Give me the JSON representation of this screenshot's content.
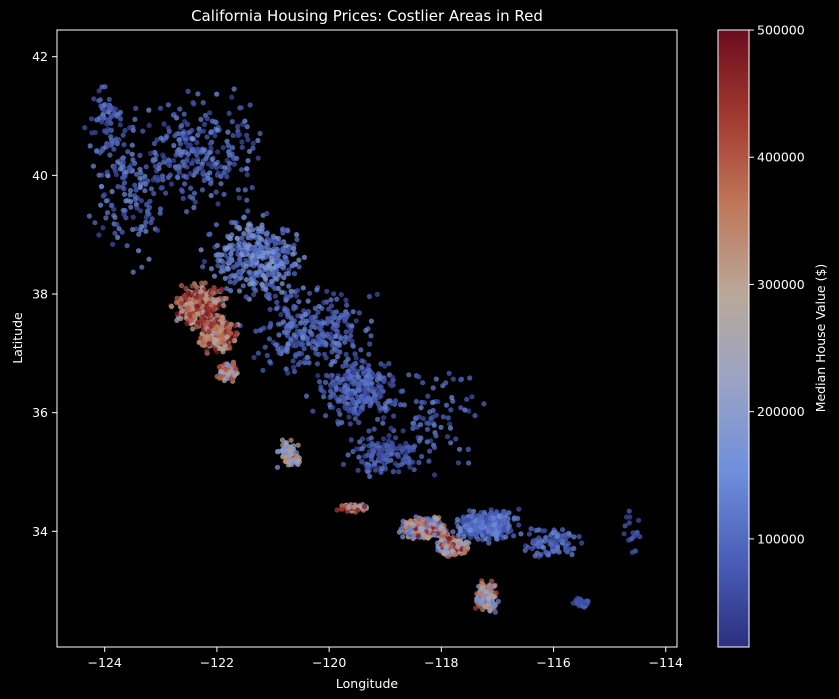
{
  "chart_data": {
    "type": "scatter",
    "title": "California Housing Prices: Costlier Areas in Red",
    "xlabel": "Longitude",
    "ylabel": "Latitude",
    "xlim": [
      -124.85,
      -113.8
    ],
    "ylim": [
      32.05,
      42.45
    ],
    "xticks": [
      -124,
      -122,
      -120,
      -118,
      -116,
      -114
    ],
    "yticks": [
      34,
      36,
      38,
      40,
      42
    ],
    "grid": false,
    "colorbar": {
      "label": "Median House Value ($)",
      "range": [
        15000,
        500000
      ],
      "ticks": [
        100000,
        200000,
        300000,
        400000,
        500000
      ],
      "colormap": "coolwarm",
      "colors": [
        "#2b2f7e",
        "#4a5fb8",
        "#6f8fdc",
        "#9aa3c5",
        "#b9a89a",
        "#c0785a",
        "#a23a30",
        "#6b0d1f"
      ]
    },
    "regions": [
      {
        "lon": -121.3,
        "lat": 38.6,
        "lon_spread": 1.1,
        "lat_spread": 0.9,
        "value_min": 60000,
        "value_max": 200000,
        "count": 380
      },
      {
        "lon": -122.3,
        "lat": 40.4,
        "lon_spread": 1.4,
        "lat_spread": 1.2,
        "value_min": 40000,
        "value_max": 160000,
        "count": 260
      },
      {
        "lon": -123.6,
        "lat": 39.8,
        "lon_spread": 0.9,
        "lat_spread": 1.6,
        "value_min": 50000,
        "value_max": 170000,
        "count": 160
      },
      {
        "lon": -124.0,
        "lat": 41.0,
        "lon_spread": 0.35,
        "lat_spread": 0.8,
        "value_min": 50000,
        "value_max": 150000,
        "count": 60
      },
      {
        "lon": -120.3,
        "lat": 37.4,
        "lon_spread": 1.4,
        "lat_spread": 0.9,
        "value_min": 50000,
        "value_max": 150000,
        "count": 280
      },
      {
        "lon": -119.5,
        "lat": 36.4,
        "lon_spread": 1.0,
        "lat_spread": 0.8,
        "value_min": 40000,
        "value_max": 140000,
        "count": 280
      },
      {
        "lon": -119.0,
        "lat": 35.3,
        "lon_spread": 0.8,
        "lat_spread": 0.5,
        "value_min": 40000,
        "value_max": 130000,
        "count": 140
      },
      {
        "lon": -122.3,
        "lat": 37.8,
        "lon_spread": 0.55,
        "lat_spread": 0.5,
        "value_min": 250000,
        "value_max": 500000,
        "count": 340
      },
      {
        "lon": -122.0,
        "lat": 37.3,
        "lon_spread": 0.45,
        "lat_spread": 0.35,
        "value_min": 250000,
        "value_max": 500000,
        "count": 200
      },
      {
        "lon": -121.8,
        "lat": 36.7,
        "lon_spread": 0.25,
        "lat_spread": 0.25,
        "value_min": 150000,
        "value_max": 450000,
        "count": 80
      },
      {
        "lon": -118.3,
        "lat": 34.05,
        "lon_spread": 0.5,
        "lat_spread": 0.2,
        "value_min": 100000,
        "value_max": 500000,
        "count": 520
      },
      {
        "lon": -117.8,
        "lat": 33.75,
        "lon_spread": 0.35,
        "lat_spread": 0.2,
        "value_min": 150000,
        "value_max": 500000,
        "count": 320
      },
      {
        "lon": -117.2,
        "lat": 32.9,
        "lon_spread": 0.25,
        "lat_spread": 0.3,
        "value_min": 100000,
        "value_max": 450000,
        "count": 260
      },
      {
        "lon": -119.6,
        "lat": 34.4,
        "lon_spread": 0.35,
        "lat_spread": 0.08,
        "value_min": 200000,
        "value_max": 500000,
        "count": 70
      },
      {
        "lon": -117.2,
        "lat": 34.1,
        "lon_spread": 0.7,
        "lat_spread": 0.35,
        "value_min": 60000,
        "value_max": 160000,
        "count": 320
      },
      {
        "lon": -116.0,
        "lat": 33.8,
        "lon_spread": 0.7,
        "lat_spread": 0.35,
        "value_min": 50000,
        "value_max": 150000,
        "count": 100
      },
      {
        "lon": -115.5,
        "lat": 32.8,
        "lon_spread": 0.2,
        "lat_spread": 0.1,
        "value_min": 50000,
        "value_max": 100000,
        "count": 40
      },
      {
        "lon": -114.6,
        "lat": 34.0,
        "lon_spread": 0.2,
        "lat_spread": 0.7,
        "value_min": 40000,
        "value_max": 100000,
        "count": 20
      },
      {
        "lon": -120.7,
        "lat": 35.3,
        "lon_spread": 0.3,
        "lat_spread": 0.3,
        "value_min": 150000,
        "value_max": 350000,
        "count": 70
      },
      {
        "lon": -118.0,
        "lat": 36.0,
        "lon_spread": 1.0,
        "lat_spread": 1.2,
        "value_min": 50000,
        "value_max": 150000,
        "count": 80
      }
    ]
  }
}
